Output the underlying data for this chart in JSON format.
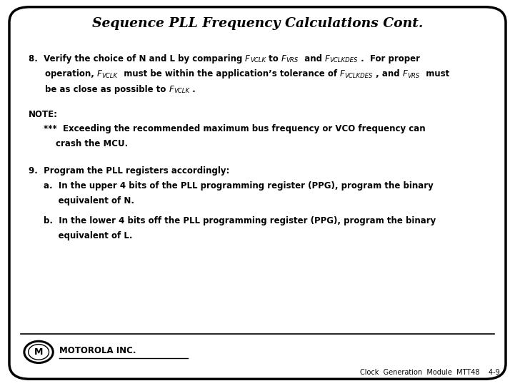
{
  "title": "Sequence PLL Frequency Calculations Cont.",
  "background_color": "#ffffff",
  "border_color": "#000000",
  "text_color": "#000000",
  "title_fontsize": 13.5,
  "body_fontsize": 8.5,
  "footer_text": "Clock  Generation  Module  MTT48    4-9",
  "motorola_text": "MOTOROLA INC.",
  "note_label": "NOTE:",
  "item9_prefix": "9.  Program the PLL registers accordingly:",
  "item9a_line1": "a.  In the upper 4 bits of the PLL programming register (PPG), program the binary",
  "item9a_line2": "     equivalent of N.",
  "item9b_line1": "b.  In the lower 4 bits off the PLL programming register (PPG), program the binary",
  "item9b_line2": "     equivalent of L."
}
